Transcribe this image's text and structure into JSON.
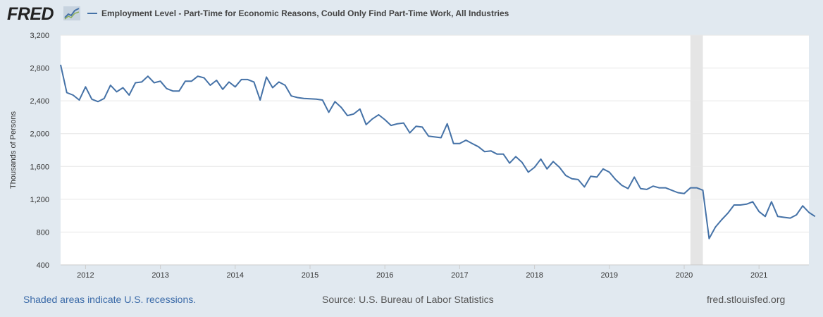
{
  "header": {
    "logo_text": "FRED",
    "logo_icon": "line-graph-icon",
    "legend_label": "Employment Level - Part-Time for Economic Reasons, Could Only Find Part-Time Work, All Industries",
    "series_color": "#4572a7"
  },
  "footer": {
    "recession_note": "Shaded areas indicate U.S. recessions.",
    "source": "Source: U.S. Bureau of Labor Statistics",
    "site": "fred.stlouisfed.org"
  },
  "chart_data": {
    "type": "line",
    "title": "",
    "xlabel": "",
    "ylabel": "Thousands of Persons",
    "ylim": [
      400,
      3200
    ],
    "yticks": [
      400,
      800,
      1200,
      1600,
      2000,
      2400,
      2800,
      3200
    ],
    "ytick_labels": [
      "400",
      "800",
      "1,200",
      "1,600",
      "2,000",
      "2,400",
      "2,800",
      "3,200"
    ],
    "xlim": [
      "2011-09",
      "2021-09"
    ],
    "xticks": [
      "2012-01",
      "2013-01",
      "2014-01",
      "2015-01",
      "2016-01",
      "2017-01",
      "2018-01",
      "2019-01",
      "2020-01",
      "2021-01"
    ],
    "xtick_labels": [
      "2012",
      "2013",
      "2014",
      "2015",
      "2016",
      "2017",
      "2018",
      "2019",
      "2020",
      "2021"
    ],
    "grid": true,
    "recession_shading": [
      [
        "2020-02",
        "2020-04"
      ]
    ],
    "series": [
      {
        "name": "Employment Level - Part-Time for Economic Reasons, Could Only Find Part-Time Work, All Industries",
        "color": "#4572a7",
        "start": "2011-09",
        "frequency": "monthly",
        "values": [
          2840,
          2500,
          2470,
          2410,
          2570,
          2420,
          2390,
          2430,
          2590,
          2510,
          2560,
          2470,
          2620,
          2630,
          2700,
          2620,
          2640,
          2550,
          2520,
          2520,
          2640,
          2640,
          2700,
          2680,
          2590,
          2650,
          2540,
          2630,
          2570,
          2660,
          2660,
          2630,
          2410,
          2690,
          2560,
          2630,
          2590,
          2460,
          2440,
          2430,
          2425,
          2420,
          2410,
          2260,
          2390,
          2320,
          2220,
          2240,
          2300,
          2110,
          2180,
          2230,
          2170,
          2100,
          2120,
          2130,
          2010,
          2090,
          2080,
          1970,
          1960,
          1950,
          2120,
          1880,
          1880,
          1920,
          1880,
          1840,
          1780,
          1790,
          1750,
          1750,
          1640,
          1720,
          1650,
          1530,
          1590,
          1690,
          1570,
          1660,
          1590,
          1490,
          1450,
          1440,
          1350,
          1480,
          1470,
          1570,
          1530,
          1440,
          1370,
          1330,
          1470,
          1330,
          1320,
          1360,
          1340,
          1340,
          1310,
          1280,
          1270,
          1340,
          1340,
          1310,
          720,
          860,
          950,
          1030,
          1130,
          1130,
          1140,
          1170,
          1050,
          990,
          1170,
          990,
          980,
          970,
          1010,
          1120,
          1040,
          990
        ]
      }
    ]
  }
}
